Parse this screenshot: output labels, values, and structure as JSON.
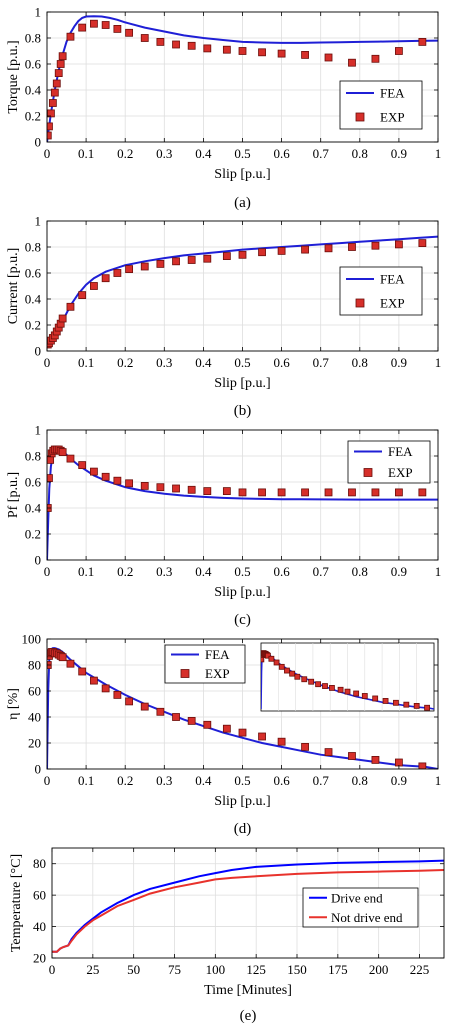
{
  "colors": {
    "fea": "#1f1fd6",
    "exp_fill": "#d62f2a",
    "exp_edge": "#6b0e0a",
    "drive_end": "#0000ff",
    "not_drive_end": "#e8322c",
    "grid": "#dedede"
  },
  "chart_data": [
    {
      "id": "a",
      "type": "line+scatter",
      "caption": "(a)",
      "xlabel": "Slip [p.u.]",
      "ylabel": "Torque [p.u.]",
      "xlim": [
        0,
        1
      ],
      "ylim": [
        0,
        1
      ],
      "xticks": [
        0,
        0.1,
        0.2,
        0.3,
        0.4,
        0.5,
        0.6,
        0.7,
        0.8,
        0.9,
        1
      ],
      "xtick_labels": [
        "0",
        "0.1",
        "0.2",
        "0.3",
        "0.4",
        "0.5",
        "0.6",
        "0.7",
        "0.8",
        "0.9",
        "1"
      ],
      "yticks": [
        0,
        0.2,
        0.4,
        0.6,
        0.8,
        1
      ],
      "ytick_labels": [
        "0",
        "0.2",
        "0.4",
        "0.6",
        "0.8",
        "1"
      ],
      "grid": true,
      "legend": "center-right",
      "series": [
        {
          "name": "FEA",
          "kind": "line",
          "x": [
            0,
            0.01,
            0.02,
            0.03,
            0.04,
            0.05,
            0.06,
            0.07,
            0.08,
            0.09,
            0.1,
            0.12,
            0.14,
            0.16,
            0.18,
            0.2,
            0.25,
            0.3,
            0.35,
            0.4,
            0.45,
            0.5,
            0.55,
            0.6,
            0.65,
            0.7,
            0.75,
            0.8,
            0.85,
            0.9,
            0.95,
            1.0
          ],
          "y": [
            0,
            0.22,
            0.4,
            0.55,
            0.67,
            0.77,
            0.84,
            0.89,
            0.93,
            0.955,
            0.965,
            0.968,
            0.965,
            0.955,
            0.94,
            0.92,
            0.88,
            0.85,
            0.82,
            0.8,
            0.785,
            0.77,
            0.765,
            0.762,
            0.762,
            0.765,
            0.768,
            0.77,
            0.772,
            0.775,
            0.778,
            0.78
          ]
        },
        {
          "name": "EXP",
          "kind": "scatter",
          "x": [
            0.002,
            0.005,
            0.01,
            0.015,
            0.02,
            0.025,
            0.03,
            0.035,
            0.04,
            0.06,
            0.09,
            0.12,
            0.15,
            0.18,
            0.21,
            0.25,
            0.29,
            0.33,
            0.37,
            0.41,
            0.46,
            0.5,
            0.55,
            0.6,
            0.66,
            0.72,
            0.78,
            0.84,
            0.9,
            0.96
          ],
          "y": [
            0.05,
            0.12,
            0.22,
            0.3,
            0.38,
            0.45,
            0.53,
            0.6,
            0.66,
            0.81,
            0.88,
            0.91,
            0.9,
            0.87,
            0.84,
            0.8,
            0.77,
            0.75,
            0.74,
            0.72,
            0.71,
            0.7,
            0.69,
            0.68,
            0.67,
            0.65,
            0.61,
            0.64,
            0.7,
            0.77
          ]
        }
      ]
    },
    {
      "id": "b",
      "type": "line+scatter",
      "caption": "(b)",
      "xlabel": "Slip [p.u.]",
      "ylabel": "Current [p.u.]",
      "xlim": [
        0,
        1
      ],
      "ylim": [
        0,
        1
      ],
      "xticks": [
        0,
        0.1,
        0.2,
        0.3,
        0.4,
        0.5,
        0.6,
        0.7,
        0.8,
        0.9,
        1
      ],
      "xtick_labels": [
        "0",
        "0.1",
        "0.2",
        "0.3",
        "0.4",
        "0.5",
        "0.6",
        "0.7",
        "0.8",
        "0.9",
        "1"
      ],
      "yticks": [
        0,
        0.2,
        0.4,
        0.6,
        0.8,
        1
      ],
      "ytick_labels": [
        "0",
        "0.2",
        "0.4",
        "0.6",
        "0.8",
        "1"
      ],
      "grid": true,
      "legend": "center-right",
      "series": [
        {
          "name": "FEA",
          "kind": "line",
          "x": [
            0,
            0.01,
            0.02,
            0.03,
            0.04,
            0.05,
            0.06,
            0.08,
            0.1,
            0.12,
            0.15,
            0.2,
            0.25,
            0.3,
            0.35,
            0.4,
            0.45,
            0.5,
            0.55,
            0.6,
            0.65,
            0.7,
            0.75,
            0.8,
            0.85,
            0.9,
            0.95,
            1.0
          ],
          "y": [
            0.03,
            0.07,
            0.12,
            0.17,
            0.23,
            0.29,
            0.35,
            0.44,
            0.51,
            0.56,
            0.61,
            0.66,
            0.69,
            0.715,
            0.735,
            0.75,
            0.765,
            0.78,
            0.79,
            0.8,
            0.81,
            0.82,
            0.83,
            0.84,
            0.85,
            0.86,
            0.87,
            0.88
          ]
        },
        {
          "name": "EXP",
          "kind": "scatter",
          "x": [
            0.002,
            0.005,
            0.01,
            0.015,
            0.02,
            0.025,
            0.03,
            0.035,
            0.04,
            0.06,
            0.09,
            0.12,
            0.15,
            0.18,
            0.21,
            0.25,
            0.29,
            0.33,
            0.37,
            0.41,
            0.46,
            0.5,
            0.55,
            0.6,
            0.66,
            0.72,
            0.78,
            0.84,
            0.9,
            0.96
          ],
          "y": [
            0.05,
            0.06,
            0.08,
            0.1,
            0.12,
            0.15,
            0.18,
            0.21,
            0.25,
            0.34,
            0.43,
            0.5,
            0.56,
            0.6,
            0.63,
            0.65,
            0.67,
            0.69,
            0.7,
            0.71,
            0.73,
            0.74,
            0.76,
            0.77,
            0.78,
            0.79,
            0.8,
            0.81,
            0.82,
            0.83
          ]
        }
      ]
    },
    {
      "id": "c",
      "type": "line+scatter",
      "caption": "(c)",
      "xlabel": "Slip [p.u.]",
      "ylabel": "Pf [p.u.]",
      "xlim": [
        0,
        1
      ],
      "ylim": [
        0,
        1
      ],
      "xticks": [
        0,
        0.1,
        0.2,
        0.3,
        0.4,
        0.5,
        0.6,
        0.7,
        0.8,
        0.9,
        1
      ],
      "xtick_labels": [
        "0",
        "0.1",
        "0.2",
        "0.3",
        "0.4",
        "0.5",
        "0.6",
        "0.7",
        "0.8",
        "0.9",
        "1"
      ],
      "yticks": [
        0,
        0.2,
        0.4,
        0.6,
        0.8,
        1
      ],
      "ytick_labels": [
        "0",
        "0.2",
        "0.4",
        "0.6",
        "0.8",
        "1"
      ],
      "grid": true,
      "legend": "top-right",
      "series": [
        {
          "name": "FEA",
          "kind": "line",
          "x": [
            0,
            0.003,
            0.006,
            0.01,
            0.015,
            0.02,
            0.025,
            0.03,
            0.04,
            0.05,
            0.06,
            0.08,
            0.1,
            0.12,
            0.15,
            0.2,
            0.25,
            0.3,
            0.35,
            0.4,
            0.45,
            0.5,
            0.55,
            0.6,
            0.65,
            0.7,
            0.8,
            0.9,
            1.0
          ],
          "y": [
            0,
            0.3,
            0.55,
            0.72,
            0.81,
            0.845,
            0.855,
            0.855,
            0.84,
            0.81,
            0.78,
            0.73,
            0.69,
            0.65,
            0.61,
            0.56,
            0.53,
            0.51,
            0.495,
            0.485,
            0.478,
            0.473,
            0.47,
            0.468,
            0.467,
            0.466,
            0.465,
            0.465,
            0.465
          ]
        },
        {
          "name": "EXP",
          "kind": "scatter",
          "x": [
            0.002,
            0.005,
            0.008,
            0.012,
            0.016,
            0.02,
            0.025,
            0.03,
            0.035,
            0.04,
            0.06,
            0.09,
            0.12,
            0.15,
            0.18,
            0.21,
            0.25,
            0.29,
            0.33,
            0.37,
            0.41,
            0.46,
            0.5,
            0.55,
            0.6,
            0.66,
            0.72,
            0.78,
            0.84,
            0.9,
            0.96
          ],
          "y": [
            0.4,
            0.63,
            0.77,
            0.82,
            0.84,
            0.85,
            0.85,
            0.85,
            0.84,
            0.83,
            0.78,
            0.73,
            0.68,
            0.64,
            0.61,
            0.59,
            0.57,
            0.56,
            0.55,
            0.54,
            0.53,
            0.53,
            0.52,
            0.52,
            0.52,
            0.52,
            0.52,
            0.52,
            0.52,
            0.52,
            0.52
          ]
        }
      ]
    },
    {
      "id": "d",
      "type": "line+scatter",
      "caption": "(d)",
      "xlabel": "Slip [p.u.]",
      "ylabel": "η [%]",
      "xlim": [
        0,
        1
      ],
      "ylim": [
        0,
        100
      ],
      "xticks": [
        0,
        0.1,
        0.2,
        0.3,
        0.4,
        0.5,
        0.6,
        0.7,
        0.8,
        0.9,
        1
      ],
      "xtick_labels": [
        "0",
        "0.1",
        "0.2",
        "0.3",
        "0.4",
        "0.5",
        "0.6",
        "0.7",
        "0.8",
        "0.9",
        "1"
      ],
      "yticks": [
        0,
        20,
        40,
        60,
        80,
        100
      ],
      "ytick_labels": [
        "0",
        "20",
        "40",
        "60",
        "80",
        "100"
      ],
      "grid": true,
      "legend": "top-center",
      "inset": true,
      "series": [
        {
          "name": "FEA",
          "kind": "line",
          "x": [
            0,
            0.003,
            0.006,
            0.01,
            0.015,
            0.02,
            0.03,
            0.04,
            0.05,
            0.06,
            0.08,
            0.1,
            0.15,
            0.2,
            0.25,
            0.3,
            0.35,
            0.4,
            0.45,
            0.5,
            0.55,
            0.6,
            0.65,
            0.7,
            0.75,
            0.8,
            0.85,
            0.9,
            0.95,
            0.97,
            1.0
          ],
          "y": [
            0,
            60,
            85,
            92,
            93,
            93,
            92,
            90,
            87,
            84,
            79,
            74,
            65,
            57,
            50,
            44,
            38,
            33,
            28,
            24,
            20,
            17,
            14,
            11,
            9,
            7,
            5,
            3,
            2,
            1.5,
            0
          ]
        },
        {
          "name": "EXP",
          "kind": "scatter",
          "x": [
            0.002,
            0.005,
            0.008,
            0.012,
            0.016,
            0.02,
            0.025,
            0.03,
            0.035,
            0.04,
            0.06,
            0.09,
            0.12,
            0.15,
            0.18,
            0.21,
            0.25,
            0.29,
            0.33,
            0.37,
            0.41,
            0.46,
            0.5,
            0.55,
            0.6,
            0.66,
            0.72,
            0.78,
            0.84,
            0.9,
            0.96
          ],
          "y": [
            80,
            87,
            89,
            90,
            90,
            89,
            89,
            88,
            87,
            86,
            81,
            75,
            68,
            62,
            57,
            52,
            48,
            44,
            40,
            37,
            34,
            31,
            28,
            25,
            21,
            17,
            13,
            10,
            7,
            5,
            2
          ]
        }
      ]
    },
    {
      "id": "e",
      "type": "line",
      "caption": "(e)",
      "xlabel": "Time [Minutes]",
      "ylabel": "Temperature [°C]",
      "xlim": [
        0,
        240
      ],
      "ylim": [
        20,
        90
      ],
      "xticks": [
        0,
        25,
        50,
        75,
        100,
        125,
        150,
        175,
        200,
        225
      ],
      "xtick_labels": [
        "0",
        "25",
        "50",
        "75",
        "100",
        "125",
        "150",
        "175",
        "200",
        "225"
      ],
      "yticks": [
        20,
        40,
        60,
        80
      ],
      "ytick_labels": [
        "20",
        "40",
        "60",
        "80"
      ],
      "grid": true,
      "legend": "center-right",
      "series": [
        {
          "name": "Drive end",
          "kind": "line",
          "x": [
            0,
            3,
            5,
            7,
            10,
            12,
            15,
            20,
            25,
            30,
            40,
            50,
            60,
            75,
            90,
            100,
            110,
            125,
            150,
            175,
            200,
            225,
            240
          ],
          "y": [
            24,
            24,
            26,
            27,
            28,
            32,
            36,
            41,
            45,
            49,
            55,
            60,
            64,
            68,
            72,
            74,
            76,
            78,
            79.5,
            80.5,
            81,
            81.5,
            82
          ]
        },
        {
          "name": "Not drive end",
          "kind": "line",
          "x": [
            0,
            3,
            5,
            7,
            10,
            12,
            15,
            20,
            25,
            30,
            40,
            50,
            60,
            75,
            90,
            100,
            110,
            125,
            150,
            175,
            200,
            225,
            240
          ],
          "y": [
            24,
            24,
            26,
            27,
            28,
            31,
            35,
            40,
            44,
            47,
            53,
            57,
            61,
            65,
            68,
            70,
            71,
            72,
            73.5,
            74.5,
            75,
            75.5,
            76
          ]
        }
      ]
    }
  ]
}
